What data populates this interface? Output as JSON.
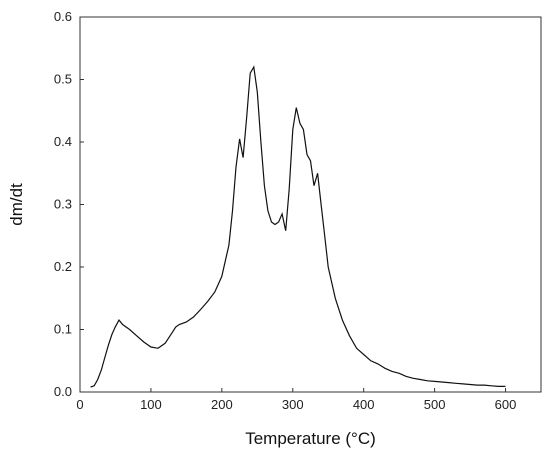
{
  "chart_data": {
    "type": "line",
    "xlabel": "Temperature (°C)",
    "ylabel": "dm/dt",
    "xlim": [
      0,
      650
    ],
    "ylim": [
      0,
      0.6
    ],
    "x_ticks": [
      0,
      100,
      200,
      300,
      400,
      500,
      600
    ],
    "y_ticks": [
      0.0,
      0.1,
      0.2,
      0.3,
      0.4,
      0.5,
      0.6
    ],
    "grid": false,
    "line_color": "#111111",
    "series": [
      {
        "x": [
          15,
          20,
          25,
          30,
          35,
          40,
          45,
          50,
          55,
          60,
          70,
          80,
          90,
          100,
          110,
          120,
          130,
          135,
          140,
          150,
          160,
          170,
          180,
          190,
          200,
          210,
          215,
          220,
          225,
          230,
          235,
          240,
          245,
          250,
          255,
          260,
          265,
          270,
          275,
          280,
          285,
          290,
          295,
          300,
          305,
          310,
          315,
          320,
          325,
          330,
          335,
          340,
          345,
          350,
          360,
          370,
          380,
          390,
          400,
          410,
          420,
          430,
          440,
          450,
          460,
          470,
          480,
          490,
          500,
          510,
          520,
          530,
          540,
          550,
          560,
          570,
          580,
          590,
          600
        ],
        "y": [
          0.008,
          0.01,
          0.02,
          0.035,
          0.055,
          0.075,
          0.092,
          0.105,
          0.115,
          0.108,
          0.1,
          0.09,
          0.08,
          0.072,
          0.07,
          0.078,
          0.095,
          0.104,
          0.108,
          0.112,
          0.12,
          0.132,
          0.145,
          0.16,
          0.185,
          0.235,
          0.29,
          0.36,
          0.405,
          0.375,
          0.44,
          0.51,
          0.52,
          0.48,
          0.4,
          0.33,
          0.29,
          0.272,
          0.268,
          0.272,
          0.285,
          0.258,
          0.325,
          0.42,
          0.455,
          0.43,
          0.42,
          0.38,
          0.37,
          0.33,
          0.35,
          0.3,
          0.25,
          0.2,
          0.15,
          0.115,
          0.09,
          0.07,
          0.06,
          0.05,
          0.045,
          0.038,
          0.033,
          0.03,
          0.025,
          0.022,
          0.02,
          0.018,
          0.017,
          0.016,
          0.015,
          0.014,
          0.013,
          0.012,
          0.011,
          0.011,
          0.01,
          0.009,
          0.009
        ]
      }
    ]
  }
}
